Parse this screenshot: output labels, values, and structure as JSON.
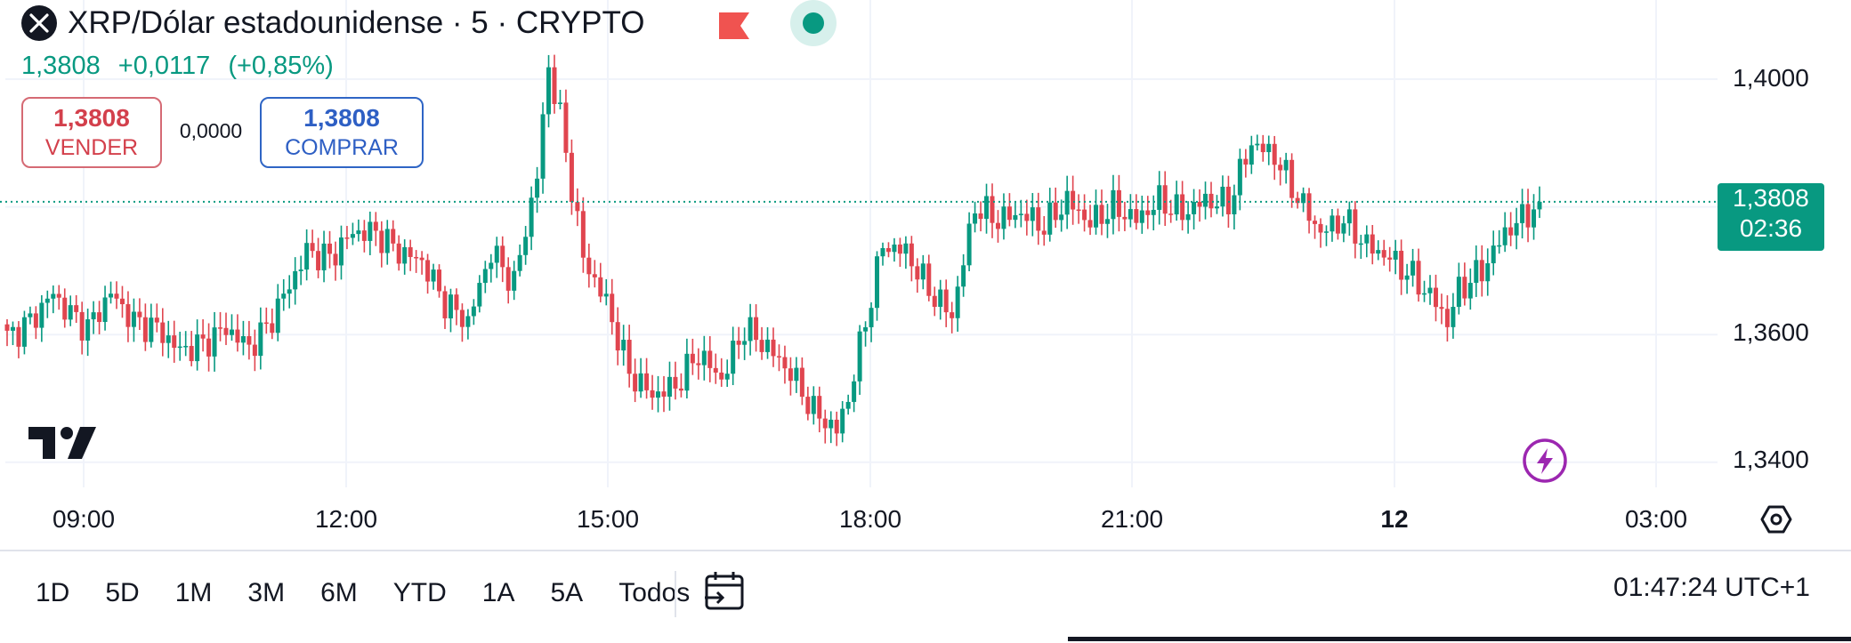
{
  "header": {
    "title": "XRP/Dólar estadounidense · 5 · CRYPTO",
    "logo_icon": "xrp-x-icon",
    "flag_icon": "flag-icon",
    "status_icon": "market-open-dot-icon"
  },
  "quote": {
    "last": "1,3808",
    "change": "+0,0117",
    "change_pct": "(+0,85%)"
  },
  "trade": {
    "sell_price": "1,3808",
    "sell_label": "VENDER",
    "spread": "0,0000",
    "buy_price": "1,3808",
    "buy_label": "COMPRAR"
  },
  "price_axis": [
    "1,4000",
    "1,3600",
    "1,3400"
  ],
  "current_price": {
    "value": "1,3808",
    "countdown": "02:36"
  },
  "time_axis": [
    "09:00",
    "12:00",
    "15:00",
    "18:00",
    "21:00",
    "12",
    "03:00"
  ],
  "ranges": [
    "1D",
    "5D",
    "1M",
    "3M",
    "6M",
    "YTD",
    "1A",
    "5A",
    "Todos"
  ],
  "clock": "01:47:24 UTC+1",
  "colors": {
    "up": "#089981",
    "down": "#e0454f",
    "text": "#131722",
    "grid": "#f0f3fa"
  },
  "chart_data": {
    "type": "candlestick",
    "title": "XRP/Dólar estadounidense · 5 · CRYPTO",
    "interval_minutes": 5,
    "y_ticks": [
      1.34,
      1.36,
      1.4
    ],
    "ylim": [
      1.3345,
      1.4095
    ],
    "last_price": 1.3808,
    "x_ticks": [
      "09:00",
      "12:00",
      "15:00",
      "18:00",
      "21:00",
      "12",
      "03:00"
    ],
    "path_points": [
      [
        0,
        1.3595
      ],
      [
        4,
        1.362
      ],
      [
        8,
        1.3665
      ],
      [
        10,
        1.364
      ],
      [
        14,
        1.361
      ],
      [
        18,
        1.3665
      ],
      [
        22,
        1.362
      ],
      [
        26,
        1.361
      ],
      [
        30,
        1.3575
      ],
      [
        34,
        1.3585
      ],
      [
        38,
        1.361
      ],
      [
        42,
        1.358
      ],
      [
        45,
        1.361
      ],
      [
        48,
        1.366
      ],
      [
        52,
        1.373
      ],
      [
        56,
        1.372
      ],
      [
        60,
        1.376
      ],
      [
        64,
        1.376
      ],
      [
        68,
        1.373
      ],
      [
        72,
        1.3715
      ],
      [
        76,
        1.365
      ],
      [
        80,
        1.362
      ],
      [
        84,
        1.373
      ],
      [
        88,
        1.368
      ],
      [
        92,
        1.385
      ],
      [
        94,
        1.402
      ],
      [
        96,
        1.394
      ],
      [
        100,
        1.372
      ],
      [
        104,
        1.365
      ],
      [
        108,
        1.354
      ],
      [
        112,
        1.3505
      ],
      [
        116,
        1.352
      ],
      [
        120,
        1.357
      ],
      [
        124,
        1.353
      ],
      [
        128,
        1.361
      ],
      [
        132,
        1.358
      ],
      [
        136,
        1.354
      ],
      [
        140,
        1.348
      ],
      [
        144,
        1.345
      ],
      [
        146,
        1.35
      ],
      [
        148,
        1.358
      ],
      [
        152,
        1.374
      ],
      [
        156,
        1.373
      ],
      [
        160,
        1.367
      ],
      [
        164,
        1.363
      ],
      [
        168,
        1.38
      ],
      [
        172,
        1.378
      ],
      [
        176,
        1.379
      ],
      [
        180,
        1.377
      ],
      [
        184,
        1.381
      ],
      [
        188,
        1.3775
      ],
      [
        192,
        1.38
      ],
      [
        196,
        1.378
      ],
      [
        200,
        1.381
      ],
      [
        204,
        1.379
      ],
      [
        208,
        1.381
      ],
      [
        212,
        1.3805
      ],
      [
        216,
        1.39
      ],
      [
        220,
        1.388
      ],
      [
        224,
        1.3815
      ],
      [
        228,
        1.376
      ],
      [
        232,
        1.378
      ],
      [
        236,
        1.374
      ],
      [
        240,
        1.372
      ],
      [
        244,
        1.369
      ],
      [
        248,
        1.365
      ],
      [
        250,
        1.362
      ],
      [
        252,
        1.367
      ],
      [
        256,
        1.37
      ],
      [
        260,
        1.376
      ],
      [
        264,
        1.379
      ],
      [
        266,
        1.3808
      ]
    ]
  }
}
